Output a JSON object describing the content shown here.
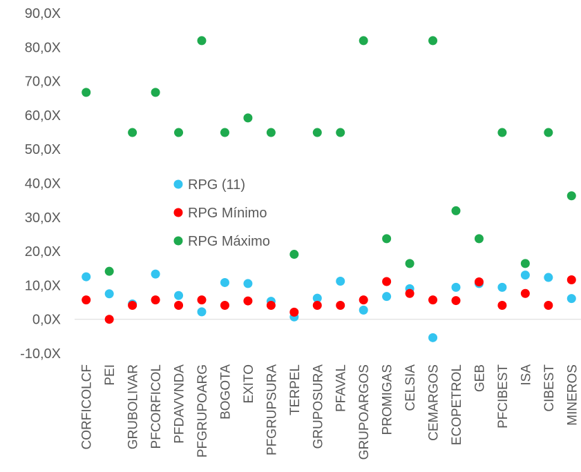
{
  "chart_data": {
    "type": "scatter",
    "title": "",
    "xlabel": "",
    "ylabel": "",
    "ylim": [
      -10,
      90
    ],
    "yticks": [
      -10,
      0,
      10,
      20,
      30,
      40,
      50,
      60,
      70,
      80,
      90
    ],
    "ytick_labels": [
      "-10,0X",
      "0,0X",
      "10,0X",
      "20,0X",
      "30,0X",
      "40,0X",
      "50,0X",
      "60,0X",
      "70,0X",
      "80,0X",
      "90,0X"
    ],
    "grid": false,
    "zero_line": true,
    "legend_position": "center-left",
    "categories": [
      "CORFICOLCF",
      "PEI",
      "GRUBOLIVAR",
      "PFCORFICOL",
      "PFDAVVNDA",
      "PFGRUPOARG",
      "BOGOTA",
      "EXITO",
      "PFGRUPSURA",
      "TERPEL",
      "GRUPOSURA",
      "PFAVAL",
      "GRUPOARGOS",
      "PROMIGAS",
      "CELSIA",
      "CEMARGOS",
      "ECOPETROL",
      "GEB",
      "PFCIBEST",
      "ISA",
      "CIBEST",
      "MINEROS"
    ],
    "series": [
      {
        "name": "RPG (11)",
        "color": "#33c4f0",
        "values": [
          12.5,
          7.5,
          4.5,
          13.3,
          7.0,
          2.2,
          10.8,
          10.5,
          5.3,
          0.7,
          6.2,
          11.2,
          2.7,
          6.7,
          9.0,
          -5.4,
          9.4,
          10.5,
          9.4,
          13.0,
          12.3,
          6.1
        ]
      },
      {
        "name": "RPG Mínimo",
        "color": "#ff0000",
        "values": [
          5.7,
          0.0,
          4.1,
          5.7,
          4.1,
          5.7,
          4.1,
          5.4,
          4.1,
          2.1,
          4.1,
          4.1,
          5.7,
          11.1,
          7.6,
          5.7,
          5.5,
          11.0,
          4.1,
          7.6,
          4.1,
          11.6
        ]
      },
      {
        "name": "RPG Máximo",
        "color": "#1eaa4e",
        "values": [
          66.7,
          14.1,
          54.9,
          66.7,
          54.9,
          81.9,
          54.9,
          59.2,
          54.9,
          19.1,
          54.9,
          54.9,
          81.9,
          23.7,
          16.4,
          81.9,
          31.9,
          23.7,
          54.9,
          16.4,
          54.9,
          36.3
        ]
      }
    ]
  }
}
